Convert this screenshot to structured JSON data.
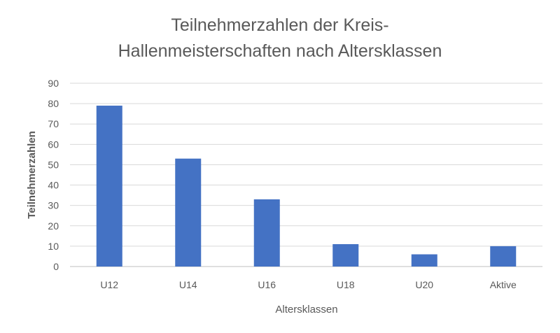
{
  "chart_data": {
    "type": "bar",
    "title_lines": [
      "Teilnehmerzahlen der Kreis-",
      "Hallenmeisterschaften nach Altersklassen"
    ],
    "xlabel": "Altersklassen",
    "ylabel": "Teilnehmerzahlen",
    "categories": [
      "U12",
      "U14",
      "U16",
      "U18",
      "U20",
      "Aktive"
    ],
    "values": [
      79,
      53,
      33,
      11,
      6,
      10
    ],
    "ylim": [
      0,
      90
    ],
    "yticks": [
      0,
      10,
      20,
      30,
      40,
      50,
      60,
      70,
      80,
      90
    ],
    "grid": true,
    "legend": false,
    "bar_color": "#4472c4"
  }
}
